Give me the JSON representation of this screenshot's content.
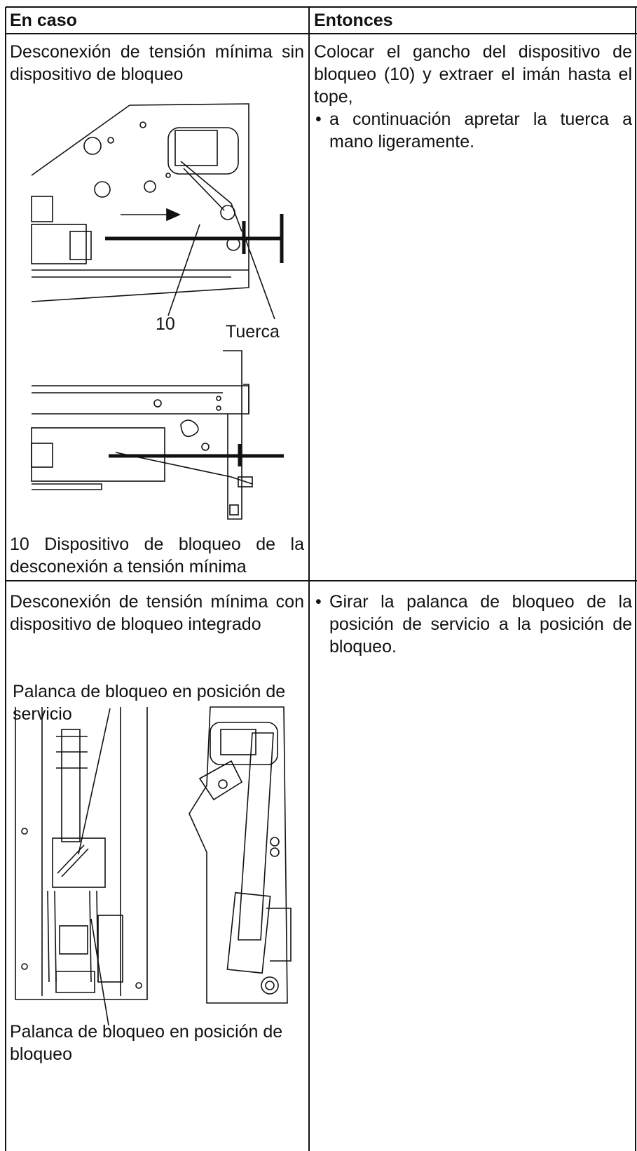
{
  "table": {
    "header": [
      "En caso",
      "Entonces"
    ],
    "rows": [
      {
        "case": "Desconexión de tensión mínima sin dispositivo de bloqueo",
        "labels": [
          "10",
          "Tuerca"
        ],
        "caption": "10 Dispositivo de bloqueo de la desconexión a tensión mínima",
        "then": "Colocar el gancho del dispositivo de bloqueo (10) y extraer el imán hasta el tope,",
        "bullets": [
          "a continuación apretar la tuerca a mano ligeramente."
        ]
      },
      {
        "case": "Desconexión de tensión mínima con dispositivo de bloqueo integrado",
        "label_top": "Palanca de bloqueo en posición de servicio",
        "label_bottom": "Palanca de bloqueo en posición de bloqueo",
        "bullets": [
          "Girar la palanca de bloqueo de la posición de servicio a la posición de bloqueo."
        ]
      }
    ]
  }
}
